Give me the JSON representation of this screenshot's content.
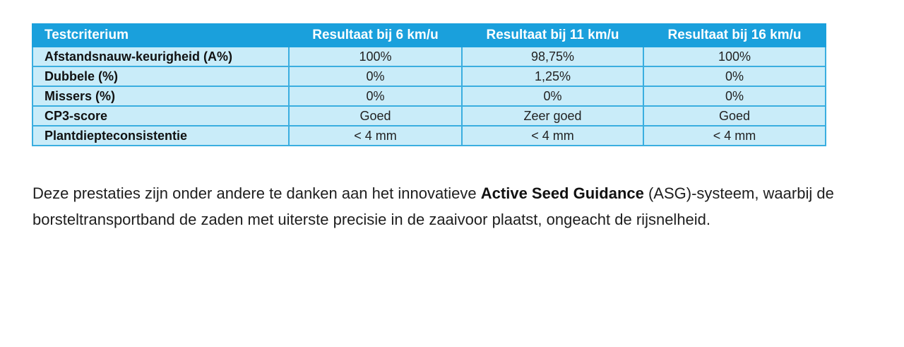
{
  "table": {
    "headers": [
      "Testcriterium",
      "Resultaat bij 6 km/u",
      "Resultaat bij 11 km/u",
      "Resultaat bij 16 km/u"
    ],
    "rows": [
      {
        "criterium": "Afstandsnauw-keurigheid (A%)",
        "values": [
          "100%",
          "98,75%",
          "100%"
        ]
      },
      {
        "criterium": "Dubbele (%)",
        "values": [
          "0%",
          "1,25%",
          "0%"
        ]
      },
      {
        "criterium": "Missers (%)",
        "values": [
          "0%",
          "0%",
          "0%"
        ]
      },
      {
        "criterium": "CP3-score",
        "values": [
          "Goed",
          "Zeer goed",
          "Goed"
        ]
      },
      {
        "criterium": "Plantdiepteconsistentie",
        "values": [
          "< 4 mm",
          "< 4 mm",
          "< 4 mm"
        ]
      }
    ],
    "colors": {
      "header_bg": "#1aa0dc",
      "cell_bg": "#c9ecf9",
      "border": "#3aaee0"
    }
  },
  "paragraph": {
    "before": "Deze prestaties zijn onder andere te danken aan het innovatieve ",
    "bold": "Active Seed Guidance",
    "after": " (ASG)-systeem, waarbij de borsteltransportband de zaden met uiterste precisie in de zaaivoor plaatst, ongeacht de rijsnelheid."
  }
}
